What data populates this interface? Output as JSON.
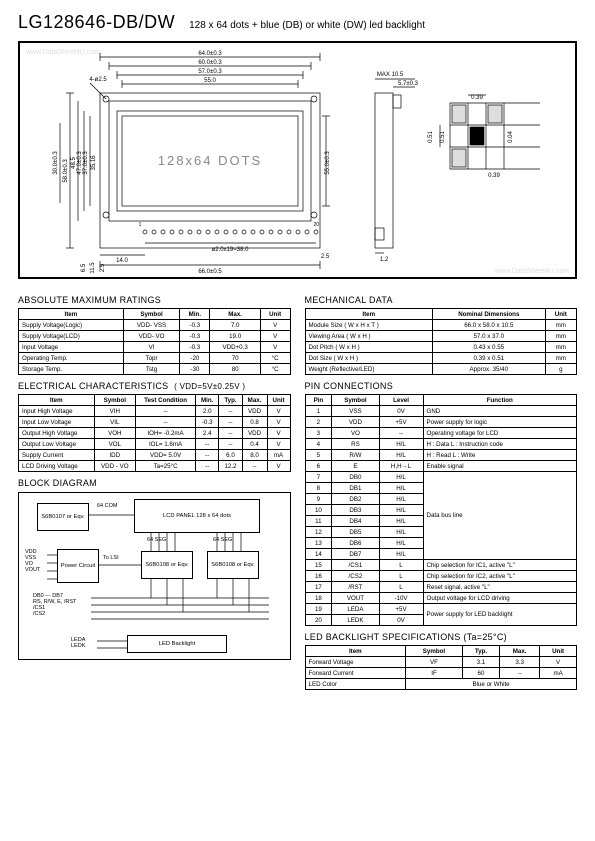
{
  "header": {
    "part_number": "LG128646-DB/DW",
    "description": "128 x 64 dots + blue (DB) or white (DW) led backlight"
  },
  "mechanical_drawing": {
    "dims_top": [
      "64.0±0.3",
      "60.0±0.3",
      "57.0±0.3",
      "55.0"
    ],
    "dims_left": [
      "58.0±0.3",
      "48.5",
      "47.0±0.3",
      "37.0±0.3",
      "35.16",
      "30.0±0.3"
    ],
    "center_text": "128x64 DOTS",
    "hole_note": "4-ø2.5",
    "pin_note": "ø2.0x19=38.0",
    "bottom_dim": "66.0±0.5",
    "bottom_left_dims": [
      "6.5",
      "11.5",
      "2.5"
    ],
    "pin_offset": "14.0",
    "side_pad": "2.5",
    "pins": "20",
    "pin1": "1",
    "side_max": "MAX 10.5",
    "side_top": "5.7±0.3",
    "side_tab": "1.2",
    "detail_dims": [
      "0.39",
      "0.51",
      "0.04",
      "0.39",
      "0.51"
    ],
    "right_dim": "55.0±0.3",
    "watermark_top": "www.DataSheet4U.com",
    "watermark_bottom": "www.DataSheet4U.com"
  },
  "amr": {
    "title": "ABSOLUTE MAXIMUM RATINGS",
    "headers": [
      "Item",
      "Symbol",
      "Min.",
      "Max.",
      "Unit"
    ],
    "rows": [
      [
        "Supply Voltage(Logic)",
        "VDD- VSS",
        "-0.3",
        "7.0",
        "V"
      ],
      [
        "Supply Voltage(LCD)",
        "VDD- VO",
        "-0.3",
        "19.0",
        "V"
      ],
      [
        "Input Voltage",
        "VI",
        "-0.3",
        "VDD+0.3",
        "V"
      ],
      [
        "Operating Temp.",
        "Topr",
        "-20",
        "70",
        "°C"
      ],
      [
        "Storage Temp.",
        "Tstg",
        "-30",
        "80",
        "°C"
      ]
    ]
  },
  "mech": {
    "title": "MECHANICAL DATA",
    "headers": [
      "Item",
      "Nominal Dimensions",
      "Unit"
    ],
    "rows": [
      [
        "Module Size ( W x H x T )",
        "66.0 x 58.0 x 10.5",
        "mm"
      ],
      [
        "Viewing Area ( W x H )",
        "57.0 x 37.0",
        "mm"
      ],
      [
        "Dot Pitch ( W x H )",
        "0.43 x 0.55",
        "mm"
      ],
      [
        "Dot Size ( W x H )",
        "0.39 x 0.51",
        "mm"
      ],
      [
        "Weight (Reflective/LED)",
        "Approx. 35/40",
        "g"
      ]
    ]
  },
  "elec": {
    "title": "ELECTRICAL CHARACTERISTICS",
    "condition": "( VDD=5V±0.25V )",
    "headers": [
      "Item",
      "Symbol",
      "Test Condition",
      "Min.",
      "Typ.",
      "Max.",
      "Unit"
    ],
    "rows": [
      [
        "Input High Voltage",
        "VIH",
        "--",
        "2.0",
        "--",
        "VDD",
        "V"
      ],
      [
        "Input Low Voltage",
        "VIL",
        "--",
        "-0.3",
        "--",
        "0.8",
        "V"
      ],
      [
        "Output High Voltage",
        "VOH",
        "IOH= -0.2mA",
        "2.4",
        "--",
        "VDD",
        "V"
      ],
      [
        "Output Low Voltage",
        "VOL",
        "IOL= 1.6mA",
        "--",
        "--",
        "0.4",
        "V"
      ],
      [
        "Supply Current",
        "IDD",
        "VDD= 5.0V",
        "--",
        "6.0",
        "8.0",
        "mA"
      ],
      [
        "LCD Driving Voltage",
        "VDD - VO",
        "Ta=25°C",
        "--",
        "12.2",
        "--",
        "V"
      ]
    ]
  },
  "pins": {
    "title": "PIN CONNECTIONS",
    "headers": [
      "Pin",
      "Symbol",
      "Level",
      "Function"
    ],
    "rows": [
      [
        "1",
        "VSS",
        "0V",
        "GND"
      ],
      [
        "2",
        "VDD",
        "+5V",
        "Power supply for logic"
      ],
      [
        "3",
        "VO",
        "--",
        "Operating voltage for LCD"
      ],
      [
        "4",
        "RS",
        "H/L",
        "H : Data   L : Instruction code"
      ],
      [
        "5",
        "R/W",
        "H/L",
        "H : Read   L : Write"
      ],
      [
        "6",
        "E",
        "H,H→L",
        "Enable signal"
      ],
      [
        "7",
        "DB0",
        "H/L",
        ""
      ],
      [
        "8",
        "DB1",
        "H/L",
        ""
      ],
      [
        "9",
        "DB2",
        "H/L",
        ""
      ],
      [
        "10",
        "DB3",
        "H/L",
        "Data bus line"
      ],
      [
        "11",
        "DB4",
        "H/L",
        ""
      ],
      [
        "12",
        "DB5",
        "H/L",
        ""
      ],
      [
        "13",
        "DB6",
        "H/L",
        ""
      ],
      [
        "14",
        "DB7",
        "H/L",
        ""
      ],
      [
        "15",
        "/CS1",
        "L",
        "Chip selection for IC1, active \"L\""
      ],
      [
        "16",
        "/CS2",
        "L",
        "Chip selection for IC2, active \"L\""
      ],
      [
        "17",
        "/RST",
        "L",
        "Reset signal, active \"L\""
      ],
      [
        "18",
        "VOUT",
        "-10V",
        "Output voltage for LCD driving"
      ],
      [
        "19",
        "LEDA",
        "+5V",
        ""
      ],
      [
        "20",
        "LEDK",
        "0V",
        "Power supply for LED backlight"
      ]
    ],
    "data_bus_rowspan_start": 6,
    "data_bus_rowspan_len": 8,
    "led_rowspan_start": 18,
    "led_rowspan_len": 2
  },
  "block": {
    "title": "BLOCK DIAGRAM",
    "boxes": {
      "comdrv": "S6B0107\nor Eqv.",
      "lcd": "LCD  PANEL\n128 x 64 dots",
      "power": "Power\nCircuit",
      "seg1": "S6B0108\nor Eqv.",
      "seg2": "S6B0108\nor Eqv.",
      "backlight": "LED Backlight"
    },
    "labels": {
      "com": "64 COM",
      "seg_a": "64 SEG",
      "seg_b": "64 SEG",
      "tolsi": "To LSI",
      "power_pins": "VDD\nVSS\nVO\nVOUT",
      "bus": "DB0 --- DB7\nRS, R/W, E, /RST\n/CS1\n/CS2",
      "led_pins": "LEDA\nLEDK"
    }
  },
  "led": {
    "title": "LED BACKLIGHT SPECIFICATIONS (Ta=25°C)",
    "headers": [
      "Item",
      "Symbol",
      "Typ.",
      "Max.",
      "Unit"
    ],
    "rows": [
      [
        "Forward Voltage",
        "VF",
        "3.1",
        "3.3",
        "V"
      ],
      [
        "Forward Current",
        "IF",
        "60",
        "--",
        "mA"
      ],
      [
        "LED Color",
        "Blue or White",
        "",
        "",
        ""
      ]
    ]
  }
}
